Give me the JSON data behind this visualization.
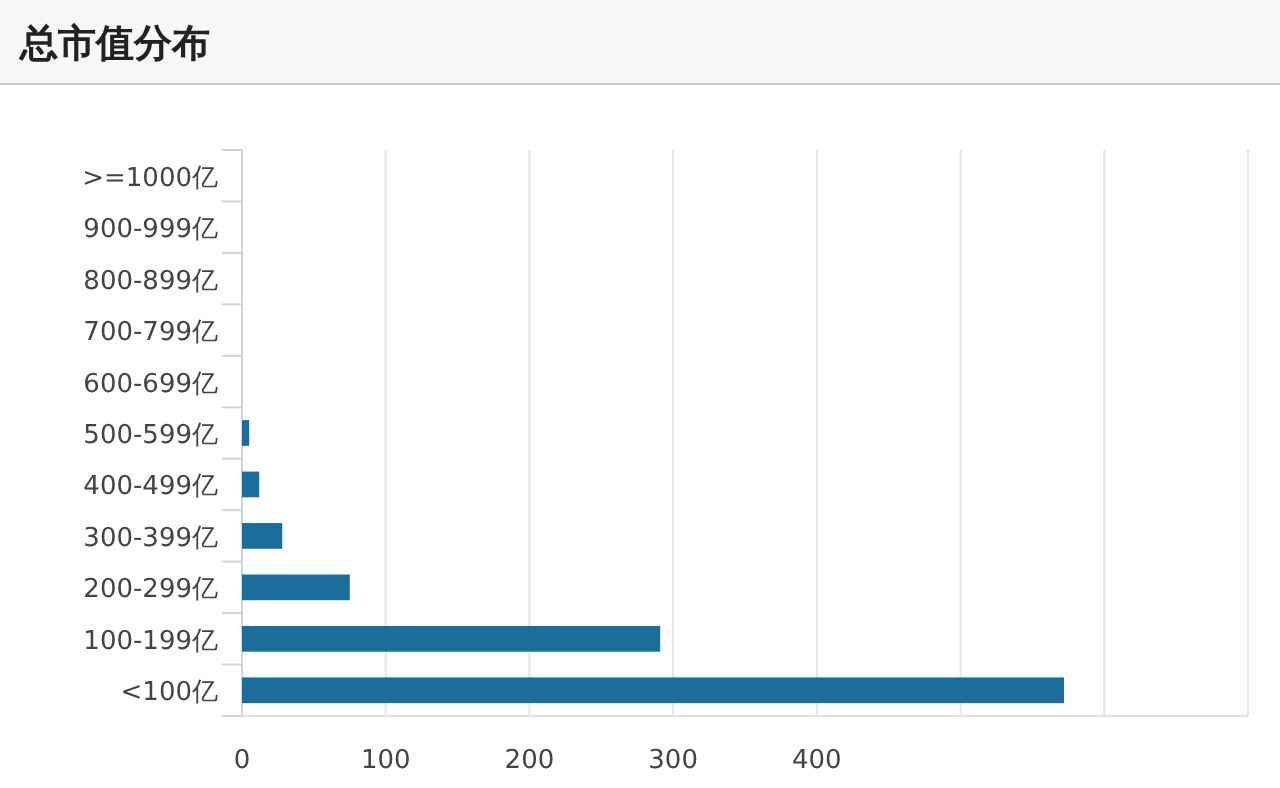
{
  "chart_data": {
    "type": "bar",
    "orientation": "horizontal",
    "title": "总市值分布",
    "categories": [
      ">=1000亿",
      "900-999亿",
      "800-899亿",
      "700-799亿",
      "600-699亿",
      "500-599亿",
      "400-499亿",
      "300-399亿",
      "200-299亿",
      "100-199亿",
      "<100亿"
    ],
    "values": [
      0,
      0,
      0,
      0,
      0,
      5,
      12,
      28,
      75,
      291,
      572
    ],
    "color": "#1b6d9c",
    "xlim": [
      0,
      700
    ],
    "xticks": [
      0,
      100,
      200,
      300,
      400,
      {
        "value": 500,
        "label": null
      },
      {
        "value": 600,
        "label": null
      },
      {
        "value": 700,
        "label": null
      }
    ],
    "grid": "x"
  }
}
